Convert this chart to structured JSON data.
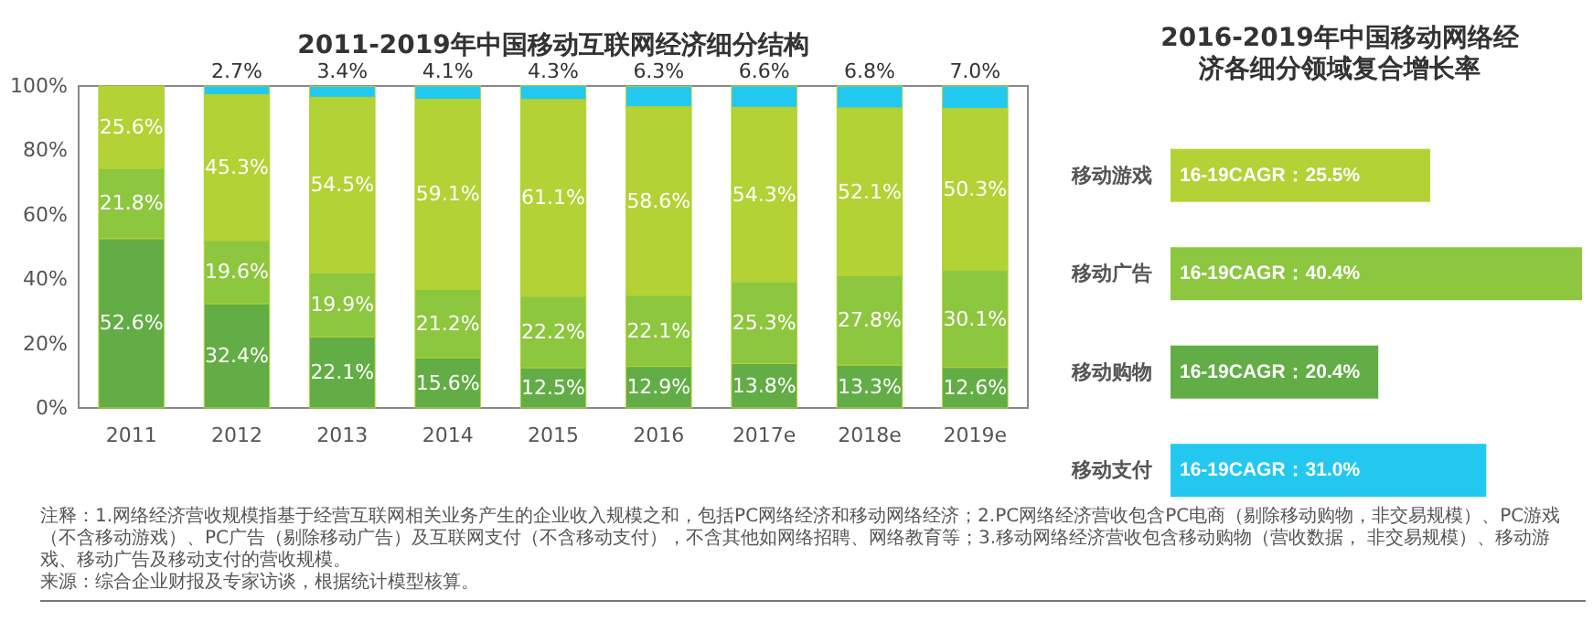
{
  "chart_data": [
    {
      "type": "bar",
      "stacked": true,
      "title": "2011-2019年中国移动互联网经济细分结构",
      "categories": [
        "2011",
        "2012",
        "2013",
        "2014",
        "2015",
        "2016",
        "2017e",
        "2018e",
        "2019e"
      ],
      "ylim": [
        0,
        100
      ],
      "yticks": [
        {
          "value": 0,
          "label": "0%"
        },
        {
          "value": 20,
          "label": "20%"
        },
        {
          "value": 40,
          "label": "40%"
        },
        {
          "value": 60,
          "label": "60%"
        },
        {
          "value": 80,
          "label": "80%"
        },
        {
          "value": 100,
          "label": "100%"
        }
      ],
      "series": [
        {
          "color": "#62ad45",
          "values": [
            52.6,
            32.4,
            22.1,
            15.6,
            12.5,
            12.9,
            13.8,
            13.3,
            12.6
          ],
          "value_labels": [
            "52.6%",
            "32.4%",
            "22.1%",
            "15.6%",
            "12.5%",
            "12.9%",
            "13.8%",
            "13.3%",
            "12.6%"
          ]
        },
        {
          "color": "#8dc63f",
          "values": [
            21.8,
            19.6,
            19.9,
            21.2,
            22.2,
            22.1,
            25.3,
            27.8,
            30.1
          ],
          "value_labels": [
            "21.8%",
            "19.6%",
            "19.9%",
            "21.2%",
            "22.2%",
            "22.1%",
            "25.3%",
            "27.8%",
            "30.1%"
          ]
        },
        {
          "color": "#b2d235",
          "values": [
            25.6,
            45.3,
            54.5,
            59.1,
            61.1,
            58.6,
            54.3,
            52.1,
            50.3
          ],
          "value_labels": [
            "25.6%",
            "45.3%",
            "54.5%",
            "59.1%",
            "61.1%",
            "58.6%",
            "54.3%",
            "52.1%",
            "50.3%"
          ]
        },
        {
          "color": "#22c8ef",
          "values": [
            null,
            2.7,
            3.4,
            4.1,
            4.3,
            6.3,
            6.6,
            6.8,
            7.0
          ],
          "value_labels": [
            null,
            "2.7%",
            "3.4%",
            "4.1%",
            "4.3%",
            "6.3%",
            "6.6%",
            "6.8%",
            "7.0%"
          ]
        }
      ],
      "annotations": [
        "注释：1.网络经济营收规模指基于经营互联网相关业务产生的企业收入规模之和，包括PC网络经济和移动网络经济；2.PC网络经济营收包含PC电商（剔除移动购物，非交易规模）、PC游戏（不含移动游戏）、PC广告（剔除移动广告）及互联网支付（不含移动支付），不含其他如网络招聘、网络教育等；3.移动网络经济营收包含移动购物（营收数据， 非交易规模）、移动游戏、移动广告及移动支付的营收规模。",
        "来源：综合企业财报及专家访谈，根据统计模型核算。"
      ]
    },
    {
      "type": "bar",
      "orientation": "horizontal",
      "title": "2016-2019年中国移动网络经济各细分领域复合增长率",
      "categories": [
        "移动游戏",
        "移动广告",
        "移动购物",
        "移动支付"
      ],
      "values": [
        25.5,
        40.4,
        20.4,
        31.0
      ],
      "colors": [
        "#b2d235",
        "#8dc63f",
        "#62ad45",
        "#22c8ef"
      ],
      "value_labels": [
        "16-19CAGR：25.5%",
        "16-19CAGR：40.4%",
        "16-19CAGR：20.4%",
        "16-19CAGR：31.0%"
      ]
    }
  ]
}
